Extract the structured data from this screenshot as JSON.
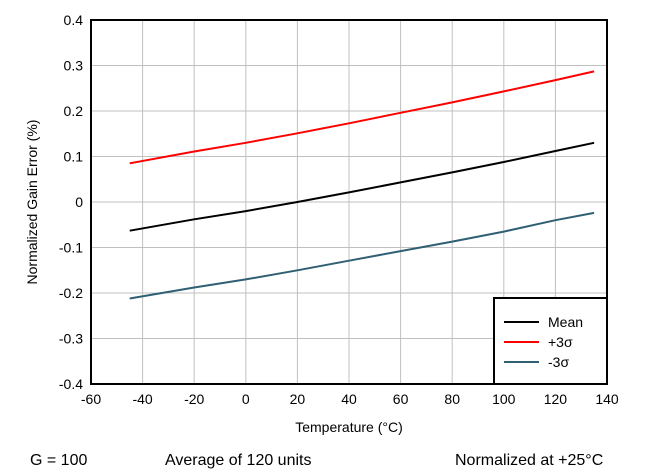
{
  "chart_data": {
    "type": "line",
    "xlabel": "Temperature (°C)",
    "ylabel": "Normalized Gain Error (%)",
    "xlim": [
      -60,
      140
    ],
    "ylim": [
      -0.4,
      0.4
    ],
    "xticks": [
      -60,
      -40,
      -20,
      0,
      20,
      40,
      60,
      80,
      100,
      120,
      140
    ],
    "yticks": [
      -0.4,
      -0.3,
      -0.2,
      -0.1,
      0,
      0.1,
      0.2,
      0.3,
      0.4
    ],
    "xtick_labels": [
      "-60",
      "-40",
      "-20",
      "0",
      "20",
      "40",
      "60",
      "80",
      "100",
      "120",
      "140"
    ],
    "ytick_labels": [
      "-0.4",
      "-0.3",
      "-0.2",
      "-0.1",
      "0",
      "0.1",
      "0.2",
      "0.3",
      "0.4"
    ],
    "grid": true,
    "legend_position": "bottom-right",
    "series": [
      {
        "name": "Mean",
        "color": "#000000",
        "x": [
          -45,
          -20,
          0,
          20,
          40,
          60,
          80,
          100,
          120,
          135
        ],
        "y": [
          -0.063,
          -0.038,
          -0.02,
          0.0,
          0.021,
          0.043,
          0.065,
          0.088,
          0.112,
          0.13
        ]
      },
      {
        "name": "+3σ",
        "color": "#ff0000",
        "x": [
          -45,
          -20,
          0,
          20,
          40,
          60,
          80,
          100,
          120,
          135
        ],
        "y": [
          0.085,
          0.111,
          0.13,
          0.151,
          0.173,
          0.196,
          0.219,
          0.243,
          0.268,
          0.287
        ]
      },
      {
        "name": "-3σ",
        "color": "#2f5f73",
        "x": [
          -45,
          -20,
          0,
          20,
          40,
          60,
          80,
          100,
          120,
          135
        ],
        "y": [
          -0.212,
          -0.188,
          -0.17,
          -0.15,
          -0.129,
          -0.108,
          -0.087,
          -0.065,
          -0.04,
          -0.024
        ]
      }
    ]
  },
  "caption": {
    "gain": "G = 100",
    "average": "Average of 120 units",
    "normalized": "Normalized at +25°C"
  }
}
